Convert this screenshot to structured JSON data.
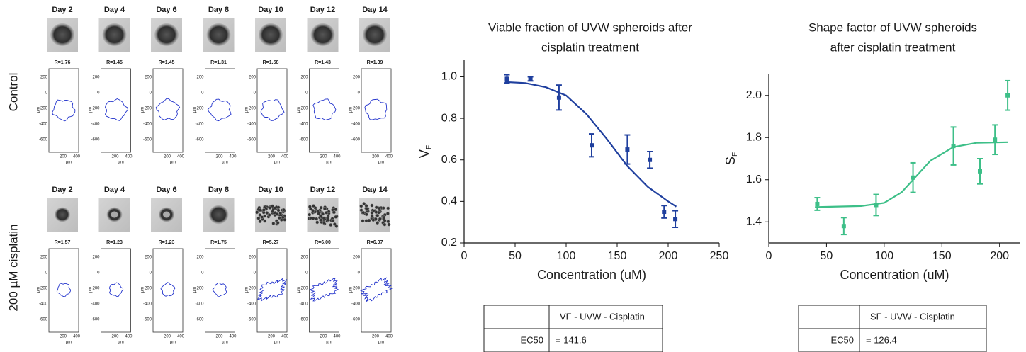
{
  "panels": [
    {
      "label": "Control",
      "days": [
        "Day 2",
        "Day 4",
        "Day 6",
        "Day 8",
        "Day 10",
        "Day 12",
        "Day 14"
      ],
      "ratios": [
        "R=1.76",
        "R=1.45",
        "R=1.45",
        "R=1.31",
        "R=1.58",
        "R=1.43",
        "R=1.39"
      ]
    },
    {
      "label": "200 µM cisplatin",
      "days": [
        "Day 2",
        "Day 4",
        "Day 6",
        "Day 8",
        "Day 10",
        "Day 12",
        "Day 14"
      ],
      "ratios": [
        "R=1.57",
        "R=1.23",
        "R=1.23",
        "R=1.75",
        "R=5.27",
        "R=6.00",
        "R=6.07"
      ]
    }
  ],
  "contour_axis": {
    "yticks": [
      200,
      0,
      -200,
      -400,
      -600
    ],
    "xticks": [
      200,
      400
    ],
    "unit": "µm"
  },
  "chart_data": [
    {
      "type": "scatter",
      "title": [
        "Viable fraction of UVW spheroids after",
        "cisplatin treatment"
      ],
      "xlabel": "Concentration (uM)",
      "ylabel": "V",
      "ylabel_sub": "F",
      "color": "#1f3f9e",
      "x": [
        42,
        65,
        93,
        125,
        160,
        182,
        196,
        207
      ],
      "values": [
        0.99,
        0.99,
        0.9,
        0.67,
        0.65,
        0.6,
        0.35,
        0.315
      ],
      "errors": [
        0.02,
        0.01,
        0.06,
        0.055,
        0.07,
        0.04,
        0.03,
        0.04
      ],
      "fit": {
        "x": [
          40,
          60,
          80,
          100,
          120,
          140,
          160,
          180,
          200,
          208
        ],
        "values": [
          0.975,
          0.97,
          0.95,
          0.91,
          0.82,
          0.7,
          0.57,
          0.47,
          0.4,
          0.375
        ]
      },
      "xlim": [
        0,
        250
      ],
      "xticks": [
        0,
        50,
        100,
        150,
        200,
        250
      ],
      "ylim": [
        0.2,
        1.08
      ],
      "yticks": [
        0.2,
        0.4,
        0.6,
        0.8,
        {
          "value": 1,
          "label": "1.0"
        }
      ]
    },
    {
      "type": "scatter",
      "title": [
        "Shape factor of UVW spheroids",
        "after cisplatin treatment"
      ],
      "xlabel": "Concentration (uM)",
      "ylabel": "S",
      "ylabel_sub": "F",
      "color": "#3dbf88",
      "x": [
        42,
        65,
        93,
        125,
        160,
        183,
        196,
        207
      ],
      "values": [
        1.485,
        1.38,
        1.48,
        1.61,
        1.76,
        1.64,
        1.79,
        2.0
      ],
      "errors": [
        0.03,
        0.04,
        0.05,
        0.07,
        0.09,
        0.06,
        0.07,
        0.07
      ],
      "fit": {
        "x": [
          40,
          80,
          100,
          115,
          125,
          140,
          160,
          180,
          207
        ],
        "values": [
          1.47,
          1.475,
          1.49,
          1.54,
          1.6,
          1.69,
          1.755,
          1.775,
          1.778
        ]
      },
      "xlim": [
        0,
        218
      ],
      "xticks": [
        0,
        50,
        100,
        150,
        200
      ],
      "ylim": [
        1.3,
        2.1
      ],
      "yticks": [
        1.4,
        1.6,
        1.8,
        {
          "value": 2,
          "label": "2.0"
        }
      ]
    }
  ],
  "tables": [
    {
      "header": "VF - UVW - Cisplatin",
      "row_label": "EC50",
      "value": "= 141.6"
    },
    {
      "header": "SF - UVW - Cisplatin",
      "row_label": "EC50",
      "value": "= 126.4"
    }
  ]
}
